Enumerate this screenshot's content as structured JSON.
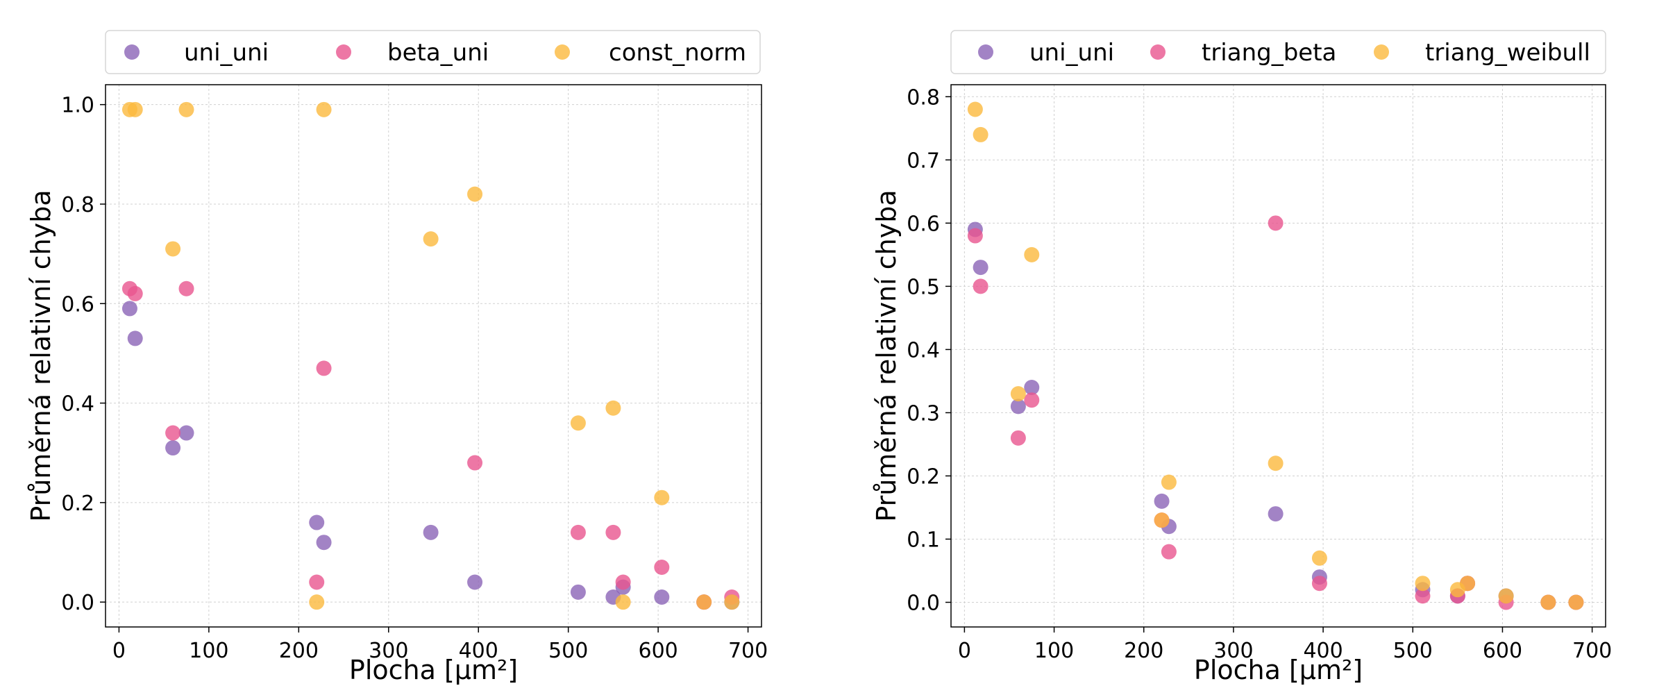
{
  "chart_data": [
    {
      "type": "scatter",
      "xlabel": "Plocha [μm²]",
      "ylabel": "Průměrná relativní chyba",
      "xlim": [
        -15,
        715
      ],
      "ylim": [
        -0.05,
        1.04
      ],
      "xticks": [
        "0",
        "100",
        "200",
        "300",
        "400",
        "500",
        "600",
        "700"
      ],
      "yticks": [
        "0.0",
        "0.2",
        "0.4",
        "0.6",
        "0.8",
        "1.0"
      ],
      "grid": true,
      "legend_position": "top",
      "series": [
        {
          "name": "uni_uni",
          "color": "#8B64B6",
          "points": [
            [
              12,
              0.59
            ],
            [
              18,
              0.53
            ],
            [
              60,
              0.31
            ],
            [
              75,
              0.34
            ],
            [
              220,
              0.16
            ],
            [
              228,
              0.12
            ],
            [
              347,
              0.14
            ],
            [
              396,
              0.04
            ],
            [
              511,
              0.02
            ],
            [
              550,
              0.01
            ],
            [
              561,
              0.03
            ],
            [
              604,
              0.01
            ],
            [
              651,
              0.0
            ],
            [
              682,
              0.0
            ]
          ]
        },
        {
          "name": "beta_uni",
          "color": "#E8558F",
          "points": [
            [
              12,
              0.63
            ],
            [
              18,
              0.62
            ],
            [
              60,
              0.34
            ],
            [
              75,
              0.63
            ],
            [
              220,
              0.04
            ],
            [
              228,
              0.47
            ],
            [
              396,
              0.28
            ],
            [
              511,
              0.14
            ],
            [
              550,
              0.14
            ],
            [
              561,
              0.04
            ],
            [
              604,
              0.07
            ],
            [
              651,
              0.0
            ],
            [
              682,
              0.01
            ]
          ]
        },
        {
          "name": "const_norm",
          "color": "#FBB93D",
          "points": [
            [
              12,
              0.99
            ],
            [
              18,
              0.99
            ],
            [
              60,
              0.71
            ],
            [
              75,
              0.99
            ],
            [
              220,
              0.0
            ],
            [
              228,
              0.99
            ],
            [
              347,
              0.73
            ],
            [
              396,
              0.82
            ],
            [
              511,
              0.36
            ],
            [
              550,
              0.39
            ],
            [
              561,
              0.0
            ],
            [
              604,
              0.21
            ],
            [
              651,
              0.0
            ],
            [
              682,
              0.0
            ]
          ]
        }
      ]
    },
    {
      "type": "scatter",
      "xlabel": "Plocha [μm²]",
      "ylabel": "Průměrná relativní chyba",
      "xlim": [
        -15,
        715
      ],
      "ylim": [
        -0.039,
        0.819
      ],
      "xticks": [
        "0",
        "100",
        "200",
        "300",
        "400",
        "500",
        "600",
        "700"
      ],
      "yticks": [
        "0.0",
        "0.1",
        "0.2",
        "0.3",
        "0.4",
        "0.5",
        "0.6",
        "0.7",
        "0.8"
      ],
      "grid": true,
      "legend_position": "top",
      "series": [
        {
          "name": "uni_uni",
          "color": "#8B64B6",
          "points": [
            [
              12,
              0.59
            ],
            [
              18,
              0.53
            ],
            [
              60,
              0.31
            ],
            [
              75,
              0.34
            ],
            [
              220,
              0.16
            ],
            [
              228,
              0.12
            ],
            [
              347,
              0.14
            ],
            [
              396,
              0.04
            ],
            [
              511,
              0.02
            ],
            [
              550,
              0.01
            ],
            [
              561,
              0.03
            ],
            [
              604,
              0.01
            ],
            [
              651,
              0.0
            ],
            [
              682,
              0.0
            ]
          ]
        },
        {
          "name": "triang_beta",
          "color": "#E8558F",
          "points": [
            [
              12,
              0.58
            ],
            [
              18,
              0.5
            ],
            [
              60,
              0.26
            ],
            [
              75,
              0.32
            ],
            [
              220,
              0.13
            ],
            [
              228,
              0.08
            ],
            [
              347,
              0.6
            ],
            [
              396,
              0.03
            ],
            [
              511,
              0.01
            ],
            [
              550,
              0.01
            ],
            [
              561,
              0.03
            ],
            [
              604,
              0.0
            ],
            [
              651,
              0.0
            ],
            [
              682,
              0.0
            ]
          ]
        },
        {
          "name": "triang_weibull",
          "color": "#FBB93D",
          "points": [
            [
              12,
              0.78
            ],
            [
              18,
              0.74
            ],
            [
              60,
              0.33
            ],
            [
              75,
              0.55
            ],
            [
              220,
              0.13
            ],
            [
              228,
              0.19
            ],
            [
              347,
              0.22
            ],
            [
              396,
              0.07
            ],
            [
              511,
              0.03
            ],
            [
              550,
              0.02
            ],
            [
              561,
              0.03
            ],
            [
              604,
              0.01
            ],
            [
              651,
              0.0
            ],
            [
              682,
              0.0
            ]
          ]
        }
      ]
    }
  ]
}
